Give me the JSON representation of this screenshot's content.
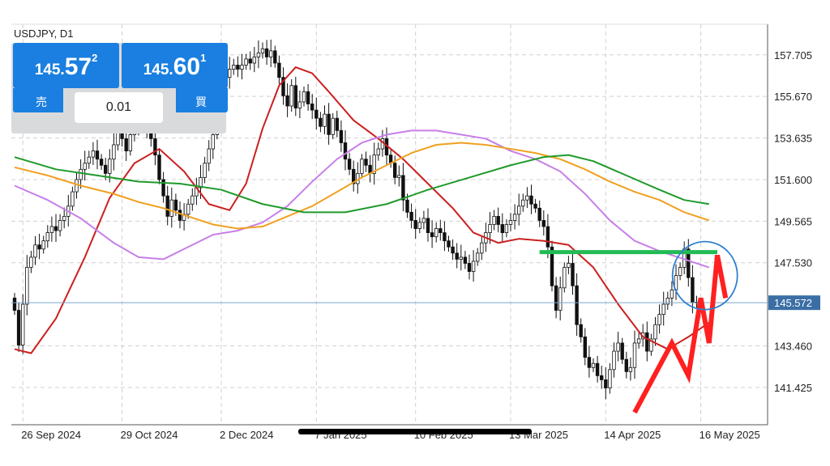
{
  "symbol": "USDJPY, D1",
  "quote_panel": {
    "sell": {
      "price_prefix": "145.",
      "price_big": "57",
      "price_sup": "2",
      "label": "売"
    },
    "buy": {
      "price_prefix": "145.",
      "price_big": "60",
      "price_sup": "1",
      "label": "買"
    },
    "lot": "0.01"
  },
  "current_price_label": "145.572",
  "colors": {
    "bull_body": "#ffffff",
    "bear_body": "#111111",
    "ma_fast": "#cc1f1f",
    "ma_purple": "#c77fe8",
    "ma_orange": "#f0a020",
    "ma_green": "#1f9a2a",
    "price_label_bg": "#3a6ea5",
    "annotation_red": "#ff2020",
    "annotation_green": "#22bb55",
    "annotation_circle": "#2f80d0"
  },
  "chart_data": {
    "type": "candlestick",
    "ylim": [
      139.6,
      159.2
    ],
    "y_ticks": [
      "157.705",
      "155.670",
      "153.635",
      "151.600",
      "149.565",
      "147.530",
      "143.460",
      "141.425"
    ],
    "x_ticks": [
      "26 Sep 2024",
      "29 Oct 2024",
      "2 Dec 2024",
      "7 Jan 2025",
      "10 Feb 2025",
      "13 Mar 2025",
      "14 Apr 2025",
      "16 May 2025"
    ],
    "x_tick_index": [
      2,
      26,
      50,
      73,
      97,
      120,
      143,
      166
    ],
    "closes": [
      145.2,
      143.5,
      145.5,
      147.3,
      147.8,
      148.4,
      148.2,
      148.6,
      149.0,
      149.3,
      149.1,
      149.6,
      149.8,
      150.3,
      151.0,
      151.6,
      152.1,
      152.4,
      152.7,
      153.0,
      152.6,
      152.3,
      151.9,
      152.6,
      153.3,
      154.0,
      153.6,
      153.0,
      153.8,
      154.2,
      154.4,
      154.5,
      153.9,
      153.6,
      152.8,
      151.6,
      150.8,
      149.8,
      150.6,
      150.1,
      149.6,
      149.9,
      150.4,
      150.8,
      151.2,
      151.7,
      152.4,
      153.1,
      153.8,
      154.6,
      155.2,
      156.6,
      157.0,
      157.2,
      157.0,
      157.2,
      157.5,
      157.3,
      157.6,
      157.8,
      158.0,
      157.6,
      157.9,
      157.3,
      156.6,
      155.7,
      155.2,
      156.2,
      155.1,
      155.4,
      155.9,
      155.3,
      155.0,
      154.6,
      154.2,
      154.8,
      153.8,
      154.6,
      154.0,
      153.4,
      152.6,
      152.1,
      151.4,
      151.9,
      152.6,
      152.3,
      151.9,
      152.8,
      153.1,
      153.6,
      152.8,
      152.4,
      151.7,
      151.8,
      150.6,
      150.0,
      149.6,
      149.2,
      149.5,
      149.7,
      149.0,
      148.8,
      149.2,
      149.0,
      148.6,
      148.3,
      148.0,
      147.7,
      147.8,
      147.5,
      147.1,
      147.6,
      148.0,
      148.5,
      149.0,
      149.4,
      149.8,
      149.4,
      149.0,
      149.4,
      149.6,
      149.9,
      150.3,
      150.6,
      150.8,
      150.4,
      150.2,
      149.6,
      149.3,
      148.3,
      146.4,
      145.2,
      146.3,
      147.3,
      147.5,
      146.4,
      144.5,
      143.9,
      142.9,
      142.4,
      142.6,
      142.0,
      141.8,
      141.4,
      142.3,
      143.2,
      143.6,
      142.8,
      142.2,
      142.4,
      143.6,
      143.8,
      144.1,
      143.2,
      143.8,
      144.5,
      145.0,
      145.5,
      145.8,
      146.2,
      146.9,
      147.3,
      148.2,
      146.8,
      145.6,
      145.572
    ],
    "series": [
      {
        "name": "",
        "color_key": "ma_fast",
        "points": [
          [
            0,
            143.3
          ],
          [
            4,
            143.1
          ],
          [
            10,
            144.8
          ],
          [
            17,
            147.8
          ],
          [
            23,
            150.7
          ],
          [
            29,
            152.4
          ],
          [
            35,
            153.1
          ],
          [
            41,
            152.0
          ],
          [
            47,
            150.4
          ],
          [
            52,
            150.1
          ],
          [
            56,
            151.4
          ],
          [
            60,
            154.1
          ],
          [
            64,
            156.2
          ],
          [
            68,
            157.1
          ],
          [
            72,
            156.8
          ],
          [
            76,
            155.9
          ],
          [
            82,
            154.5
          ],
          [
            88,
            153.6
          ],
          [
            94,
            152.6
          ],
          [
            100,
            151.4
          ],
          [
            106,
            150.2
          ],
          [
            111,
            149.0
          ],
          [
            117,
            148.5
          ],
          [
            122,
            148.7
          ],
          [
            128,
            148.6
          ],
          [
            134,
            148.4
          ],
          [
            140,
            147.3
          ],
          [
            146,
            145.5
          ],
          [
            152,
            143.9
          ],
          [
            158,
            143.3
          ],
          [
            163,
            143.9
          ],
          [
            168,
            144.6
          ]
        ]
      },
      {
        "name": "",
        "color_key": "ma_purple",
        "points": [
          [
            0,
            151.3
          ],
          [
            8,
            150.6
          ],
          [
            16,
            149.7
          ],
          [
            24,
            148.5
          ],
          [
            30,
            147.8
          ],
          [
            36,
            147.7
          ],
          [
            42,
            148.3
          ],
          [
            48,
            148.9
          ],
          [
            54,
            149.1
          ],
          [
            60,
            149.5
          ],
          [
            66,
            150.3
          ],
          [
            72,
            151.5
          ],
          [
            78,
            152.6
          ],
          [
            84,
            153.4
          ],
          [
            90,
            153.8
          ],
          [
            96,
            154.0
          ],
          [
            102,
            154.0
          ],
          [
            108,
            153.8
          ],
          [
            114,
            153.6
          ],
          [
            120,
            153.0
          ],
          [
            126,
            152.6
          ],
          [
            132,
            152.0
          ],
          [
            138,
            150.9
          ],
          [
            144,
            149.6
          ],
          [
            150,
            148.6
          ],
          [
            156,
            148.1
          ],
          [
            162,
            147.7
          ],
          [
            168,
            147.3
          ]
        ]
      },
      {
        "name": "",
        "color_key": "ma_orange",
        "points": [
          [
            0,
            152.2
          ],
          [
            8,
            151.8
          ],
          [
            16,
            151.3
          ],
          [
            24,
            150.9
          ],
          [
            30,
            150.5
          ],
          [
            36,
            150.2
          ],
          [
            42,
            149.8
          ],
          [
            48,
            149.4
          ],
          [
            54,
            149.2
          ],
          [
            60,
            149.3
          ],
          [
            66,
            149.8
          ],
          [
            72,
            150.3
          ],
          [
            78,
            151.0
          ],
          [
            84,
            151.7
          ],
          [
            90,
            152.3
          ],
          [
            96,
            152.9
          ],
          [
            102,
            153.3
          ],
          [
            108,
            153.4
          ],
          [
            114,
            153.3
          ],
          [
            120,
            153.1
          ],
          [
            126,
            152.9
          ],
          [
            132,
            152.6
          ],
          [
            138,
            152.1
          ],
          [
            144,
            151.5
          ],
          [
            150,
            151.0
          ],
          [
            156,
            150.6
          ],
          [
            162,
            150.0
          ],
          [
            168,
            149.6
          ]
        ]
      },
      {
        "name": "",
        "color_key": "ma_green",
        "points": [
          [
            0,
            152.7
          ],
          [
            10,
            152.1
          ],
          [
            20,
            151.8
          ],
          [
            30,
            151.5
          ],
          [
            40,
            151.4
          ],
          [
            50,
            151.1
          ],
          [
            60,
            150.4
          ],
          [
            70,
            150.0
          ],
          [
            80,
            150.0
          ],
          [
            90,
            150.4
          ],
          [
            100,
            151.1
          ],
          [
            110,
            151.7
          ],
          [
            120,
            152.3
          ],
          [
            128,
            152.7
          ],
          [
            134,
            152.8
          ],
          [
            140,
            152.5
          ],
          [
            148,
            151.8
          ],
          [
            156,
            151.1
          ],
          [
            162,
            150.6
          ],
          [
            168,
            150.4
          ]
        ]
      }
    ],
    "annotations": {
      "horizontal_level": 148.05,
      "zigzag": [
        [
          150,
          140.2
        ],
        [
          159,
          143.6
        ],
        [
          163,
          142.0
        ],
        [
          166,
          145.8
        ],
        [
          168,
          143.6
        ],
        [
          170,
          147.9
        ],
        [
          172,
          145.8
        ]
      ]
    }
  }
}
